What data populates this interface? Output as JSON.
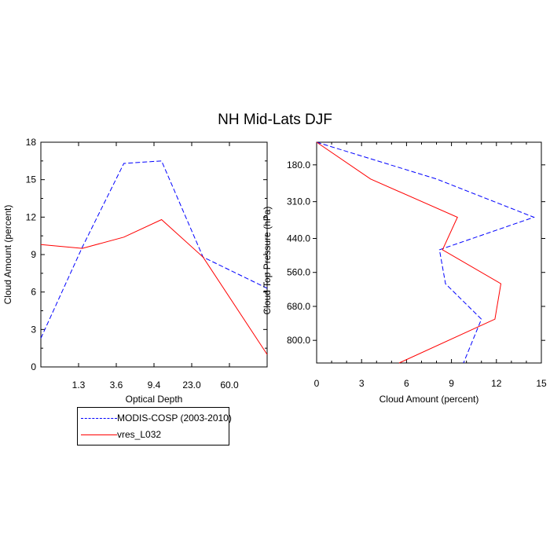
{
  "title": "NH Mid-Lats DJF",
  "colors": {
    "series1": "#0000ff",
    "series2": "#ff0000",
    "axis": "#000000"
  },
  "legend": [
    {
      "name": "MODIS-COSP (2003-2010)",
      "style": "dashed",
      "color": "#0000ff"
    },
    {
      "name": "vres_L032",
      "style": "solid",
      "color": "#ff0000"
    }
  ],
  "chart_data": [
    {
      "id": "left",
      "type": "line",
      "xlabel": "Optical Depth",
      "ylabel": "Cloud Amount (percent)",
      "xlim": [
        0,
        6
      ],
      "ylim": [
        0,
        18
      ],
      "x_tick_labels": [
        {
          "x": 1,
          "label": "1.3"
        },
        {
          "x": 2,
          "label": "3.6"
        },
        {
          "x": 3,
          "label": "9.4"
        },
        {
          "x": 4,
          "label": "23.0"
        },
        {
          "x": 5,
          "label": "60.0"
        }
      ],
      "y_ticks": [
        0,
        3,
        6,
        9,
        12,
        15,
        18
      ],
      "series": [
        {
          "name": "MODIS-COSP (2003-2010)",
          "style": "dashed",
          "color": "#0000ff",
          "x": [
            0,
            1.1,
            2.2,
            3.2,
            4.3,
            6
          ],
          "y": [
            2.3,
            9.6,
            16.3,
            16.5,
            8.8,
            6.3
          ]
        },
        {
          "name": "vres_L032",
          "style": "solid",
          "color": "#ff0000",
          "x": [
            0,
            1.1,
            2.2,
            3.2,
            4.3,
            6
          ],
          "y": [
            9.8,
            9.5,
            10.4,
            11.8,
            8.8,
            1.0
          ]
        }
      ]
    },
    {
      "id": "right",
      "type": "line",
      "xlabel": "Cloud Amount (percent)",
      "ylabel": "Cloud Top Pressure (hPa)",
      "xlim": [
        0,
        15
      ],
      "ylim": [
        880,
        100
      ],
      "x_ticks": [
        0,
        3,
        6,
        9,
        12,
        15
      ],
      "x_tick_labels": [
        "0",
        "3",
        "6",
        "9",
        "12",
        "15"
      ],
      "y_tick_labels": [
        {
          "y": 180,
          "label": "180.0"
        },
        {
          "y": 310,
          "label": "310.0"
        },
        {
          "y": 440,
          "label": "440.0"
        },
        {
          "y": 560,
          "label": "560.0"
        },
        {
          "y": 680,
          "label": "680.0"
        },
        {
          "y": 800,
          "label": "800.0"
        }
      ],
      "series": [
        {
          "name": "MODIS-COSP (2003-2010)",
          "style": "dashed",
          "color": "#0000ff",
          "x": [
            0,
            8.0,
            14.5,
            8.2,
            8.6,
            11.0,
            9.8
          ],
          "y": [
            100,
            230,
            365,
            480,
            600,
            725,
            880
          ]
        },
        {
          "name": "vres_L032",
          "style": "solid",
          "color": "#ff0000",
          "x": [
            0,
            3.6,
            9.4,
            8.4,
            12.3,
            11.9,
            5.5
          ],
          "y": [
            100,
            230,
            365,
            480,
            600,
            725,
            880
          ]
        }
      ]
    }
  ]
}
